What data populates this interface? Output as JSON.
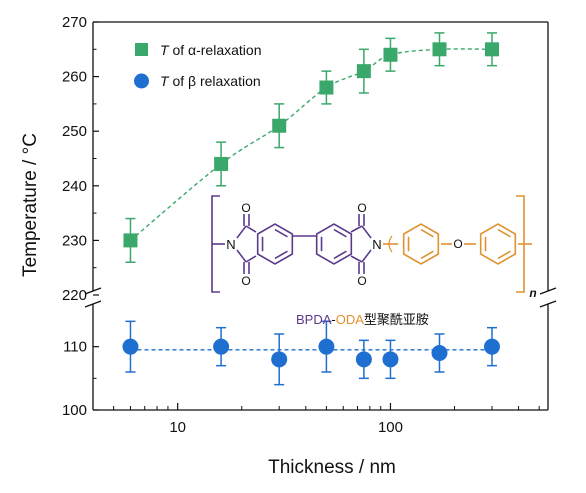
{
  "chart_data": {
    "type": "scatter",
    "title": "",
    "xlabel": "Thickness / nm",
    "ylabel": "Temperature / °C",
    "x_scale": "log",
    "xlim": [
      4,
      550
    ],
    "x_ticks": [
      "10",
      "100"
    ],
    "upper_panel": {
      "ylim": [
        220,
        270
      ],
      "y_ticks": [
        "220",
        "230",
        "240",
        "250",
        "260",
        "270"
      ]
    },
    "lower_panel": {
      "ylim": [
        100,
        115
      ],
      "y_ticks": [
        "100",
        "110"
      ]
    },
    "legend": {
      "placement": "top-left",
      "alpha_label": {
        "var": "T",
        "rest": " of α-relaxation"
      },
      "beta_label": {
        "var": "T",
        "rest": " of β relaxation"
      }
    },
    "series": [
      {
        "name": "T of α-relaxation",
        "marker": "square",
        "color": "#3aa86b",
        "panel": "upper",
        "points": [
          {
            "x": 6,
            "y": 230,
            "err": 4
          },
          {
            "x": 16,
            "y": 244,
            "err": 4
          },
          {
            "x": 30,
            "y": 251,
            "err": 4
          },
          {
            "x": 50,
            "y": 258,
            "err": 3
          },
          {
            "x": 75,
            "y": 261,
            "err": 4
          },
          {
            "x": 100,
            "y": 264,
            "err": 3
          },
          {
            "x": 170,
            "y": 265,
            "err": 3
          },
          {
            "x": 300,
            "y": 265,
            "err": 3
          }
        ]
      },
      {
        "name": "T of β relaxation",
        "marker": "circle",
        "color": "#1f6fd1",
        "panel": "lower",
        "points": [
          {
            "x": 6,
            "y": 110,
            "err": 4
          },
          {
            "x": 16,
            "y": 110,
            "err": 3
          },
          {
            "x": 30,
            "y": 108,
            "err": 4
          },
          {
            "x": 50,
            "y": 110,
            "err": 4
          },
          {
            "x": 75,
            "y": 108,
            "err": 3
          },
          {
            "x": 100,
            "y": 108,
            "err": 3
          },
          {
            "x": 170,
            "y": 109,
            "err": 3
          },
          {
            "x": 300,
            "y": 110,
            "err": 3
          }
        ]
      }
    ],
    "annotation": {
      "name_bpda": "BPDA",
      "name_dash": "-",
      "name_oda": "ODA",
      "name_rest": "型聚酰亚胺",
      "atom_n": "N",
      "atom_o": "O",
      "subscript_n": "n",
      "colors": {
        "bpda": "#5b3b8c",
        "oda": "#e0922f"
      }
    }
  }
}
